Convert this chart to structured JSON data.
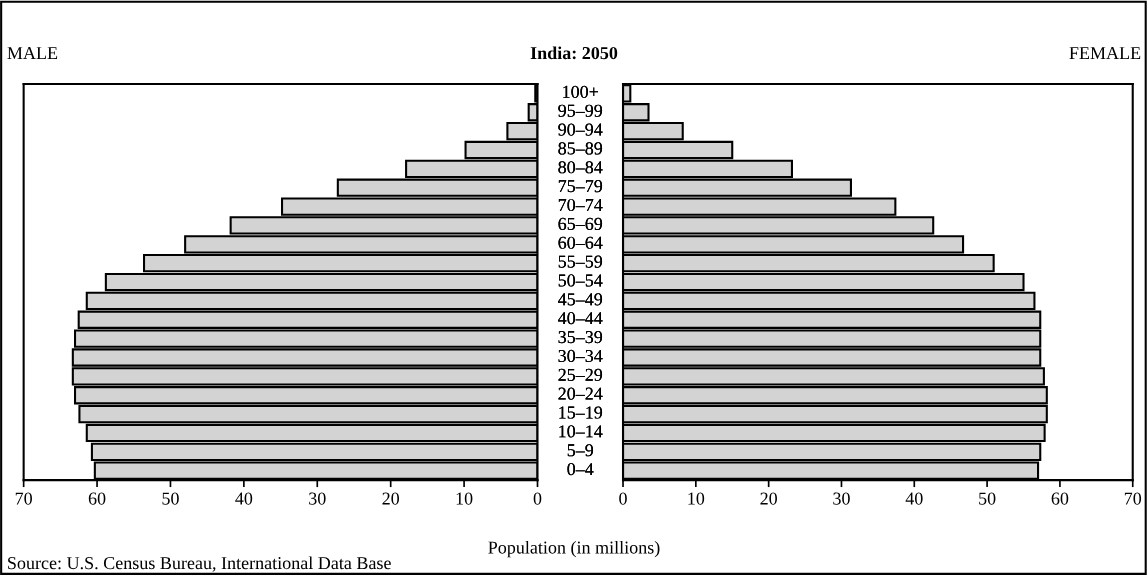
{
  "chart_data": [
    {
      "type": "bar",
      "orientation": "horizontal",
      "title": "India: 2050",
      "xlabel": "Population (in millions)",
      "categories": [
        "100+",
        "95–99",
        "90–94",
        "85–89",
        "80–84",
        "75–79",
        "70–74",
        "65–69",
        "60–64",
        "55–59",
        "50–54",
        "45–49",
        "40–44",
        "35–39",
        "30–34",
        "25–29",
        "20–24",
        "15–19",
        "10–14",
        "5–9",
        "0–4"
      ],
      "series": [
        {
          "name": "MALE",
          "color": "#d3d3d3",
          "values": [
            0.3,
            1.2,
            4.1,
            9.8,
            17.9,
            27.2,
            34.8,
            41.8,
            48.0,
            53.6,
            58.8,
            61.4,
            62.5,
            63.0,
            63.3,
            63.3,
            63.0,
            62.4,
            61.4,
            60.7,
            60.3
          ]
        }
      ],
      "xlim": [
        70,
        0
      ],
      "xticks": [
        70,
        60,
        50,
        40,
        30,
        20,
        10,
        0
      ],
      "annotations": [
        "Source: U.S. Census Bureau, International Data Base"
      ]
    },
    {
      "type": "bar",
      "orientation": "horizontal",
      "categories": [
        "100+",
        "95–99",
        "90–94",
        "85–89",
        "80–84",
        "75–79",
        "70–74",
        "65–69",
        "60–64",
        "55–59",
        "50–54",
        "45–49",
        "40–44",
        "35–39",
        "30–34",
        "25–29",
        "20–24",
        "15–19",
        "10–14",
        "5–9",
        "0–4"
      ],
      "series": [
        {
          "name": "FEMALE",
          "color": "#d3d3d3",
          "values": [
            1.0,
            3.5,
            8.2,
            15.0,
            23.2,
            31.3,
            37.4,
            42.6,
            46.7,
            50.9,
            55.0,
            56.5,
            57.3,
            57.3,
            57.3,
            57.8,
            58.2,
            58.2,
            57.9,
            57.3,
            57.0
          ]
        }
      ],
      "xlim": [
        0,
        70
      ],
      "xticks": [
        0,
        10,
        20,
        30,
        40,
        50,
        60,
        70
      ]
    }
  ]
}
